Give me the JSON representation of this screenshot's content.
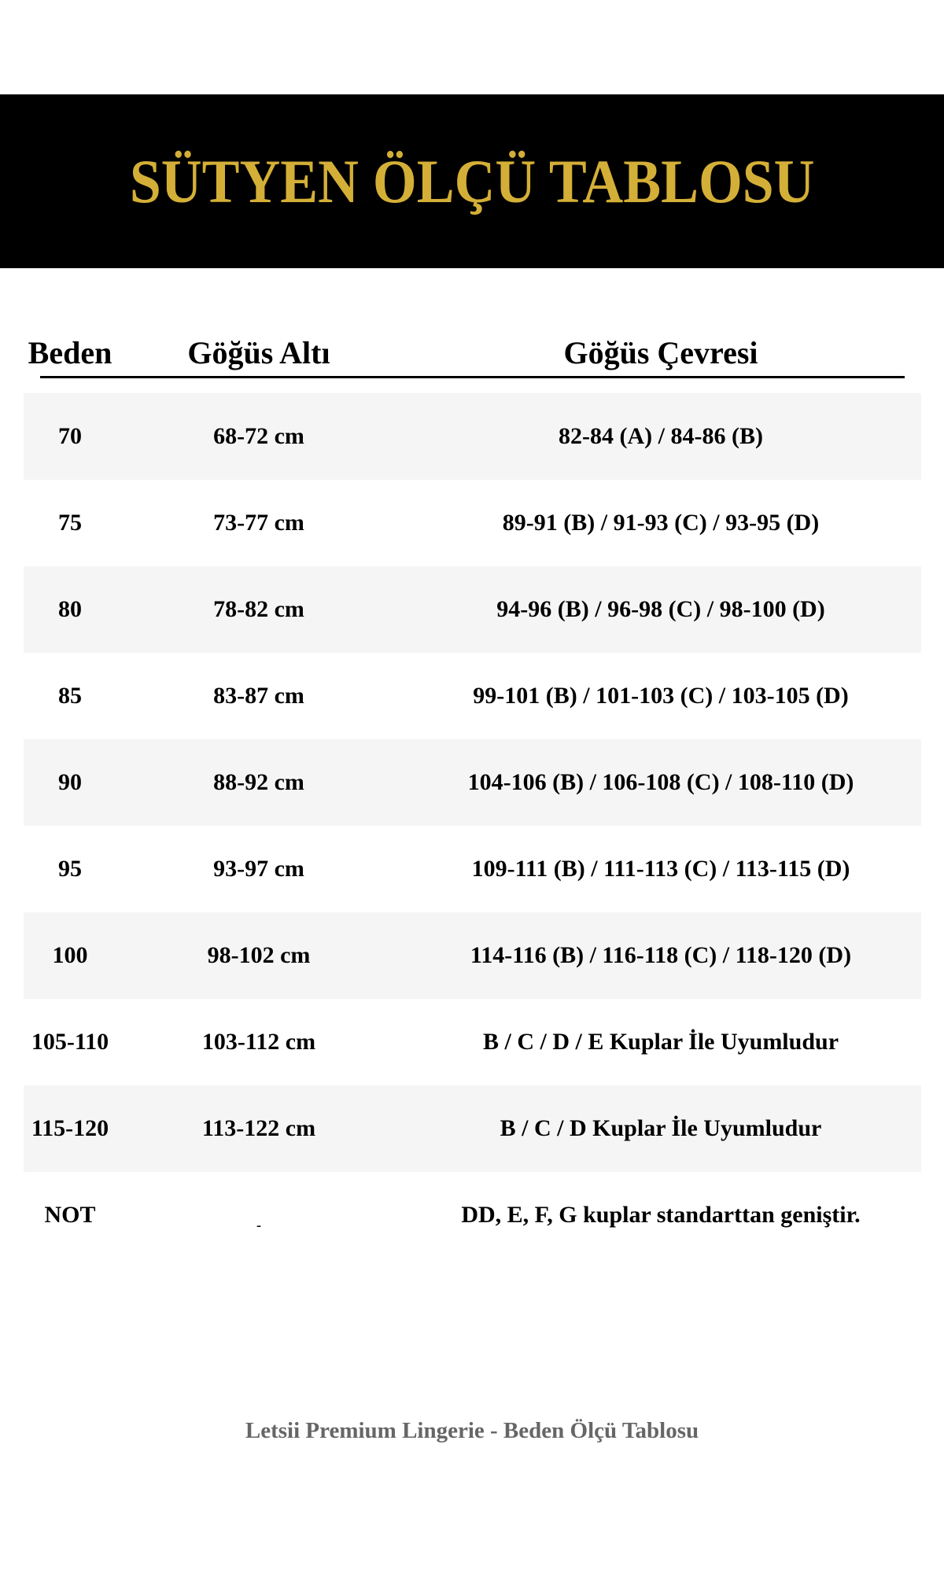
{
  "title": "SÜTYEN ÖLÇÜ TABLOSU",
  "colors": {
    "title_gold": "#d4af37",
    "band": "#000000",
    "row_stripe": "#f5f5f5",
    "footer": "#666666"
  },
  "headers": [
    "Beden",
    "Göğüs Altı",
    "Göğüs Çevresi"
  ],
  "rows": [
    [
      "70",
      "68-72 cm",
      "82-84 (A)  /  84-86 (B)"
    ],
    [
      "75",
      "73-77 cm",
      "89-91 (B)  /  91-93 (C)  /  93-95 (D)"
    ],
    [
      "80",
      "78-82 cm",
      "94-96 (B)  /  96-98 (C)  /  98-100 (D)"
    ],
    [
      "85",
      "83-87 cm",
      "99-101 (B) / 101-103 (C) / 103-105 (D)"
    ],
    [
      "90",
      "88-92 cm",
      "104-106 (B) / 106-108 (C) / 108-110 (D)"
    ],
    [
      "95",
      "93-97 cm",
      "109-111 (B) / 111-113 (C) / 113-115 (D)"
    ],
    [
      "100",
      "98-102 cm",
      "114-116 (B) / 116-118 (C) / 118-120 (D)"
    ],
    [
      "105-110",
      "103-112 cm",
      "B / C / D / E  Kuplar İle Uyumludur"
    ],
    [
      "115-120",
      "113-122 cm",
      "B / C / D  Kuplar İle Uyumludur"
    ],
    [
      "NOT",
      "-",
      "DD, E, F, G kuplar standarttan geniştir."
    ]
  ],
  "footer": "Letsii Premium Lingerie - Beden Ölçü Tablosu"
}
